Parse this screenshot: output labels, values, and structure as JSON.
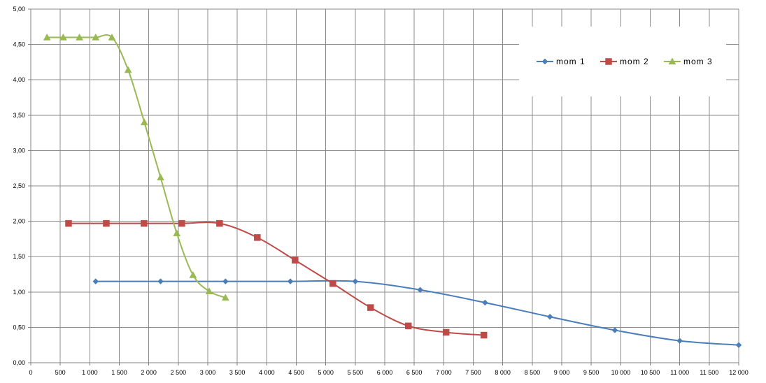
{
  "chart_data": {
    "type": "line",
    "smooth": true,
    "title": "",
    "xlabel": "",
    "ylabel": "",
    "xlim": [
      0,
      12000
    ],
    "ylim": [
      0,
      5
    ],
    "x_ticks": [
      0,
      500,
      1000,
      1500,
      2000,
      2500,
      3000,
      3500,
      4000,
      4500,
      5000,
      5500,
      6000,
      6500,
      7000,
      7500,
      8000,
      8500,
      9000,
      9500,
      10000,
      10500,
      11000,
      11500,
      12000
    ],
    "x_tick_labels": [
      "0",
      "500",
      "1 000",
      "1 500",
      "2 000",
      "2 500",
      "3 000",
      "3 500",
      "4 000",
      "4 500",
      "5 000",
      "5 500",
      "6 000",
      "6 500",
      "7 000",
      "7 500",
      "8 000",
      "8 500",
      "9 000",
      "9 500",
      "10 000",
      "10 500",
      "11 000",
      "11 500",
      "12 000"
    ],
    "y_ticks": [
      0,
      0.5,
      1,
      1.5,
      2,
      2.5,
      3,
      3.5,
      4,
      4.5,
      5
    ],
    "y_tick_labels": [
      "0,00",
      "0,50",
      "1,00",
      "1,50",
      "2,00",
      "2,50",
      "3,00",
      "3,50",
      "4,00",
      "4,50",
      "5,00"
    ],
    "grid": true,
    "legend_position": "top-right",
    "series": [
      {
        "name": "mom 1",
        "color": "#4a7ebb",
        "marker": "diamond",
        "points": [
          [
            1100,
            1.15
          ],
          [
            2200,
            1.15
          ],
          [
            3300,
            1.15
          ],
          [
            4400,
            1.15
          ],
          [
            5500,
            1.15
          ],
          [
            6600,
            1.03
          ],
          [
            7700,
            0.85
          ],
          [
            8800,
            0.65
          ],
          [
            9900,
            0.46
          ],
          [
            11000,
            0.31
          ],
          [
            12000,
            0.25
          ]
        ]
      },
      {
        "name": "mom 2",
        "color": "#be4b48",
        "marker": "square",
        "points": [
          [
            640,
            1.97
          ],
          [
            1280,
            1.97
          ],
          [
            1920,
            1.97
          ],
          [
            2560,
            1.97
          ],
          [
            3200,
            1.97
          ],
          [
            3840,
            1.77
          ],
          [
            4480,
            1.45
          ],
          [
            5120,
            1.12
          ],
          [
            5760,
            0.78
          ],
          [
            6400,
            0.52
          ],
          [
            7040,
            0.43
          ],
          [
            7680,
            0.39
          ]
        ]
      },
      {
        "name": "mom 3",
        "color": "#98b954",
        "marker": "triangle",
        "points": [
          [
            275,
            4.6
          ],
          [
            550,
            4.6
          ],
          [
            825,
            4.6
          ],
          [
            1100,
            4.6
          ],
          [
            1375,
            4.6
          ],
          [
            1650,
            4.14
          ],
          [
            1925,
            3.4
          ],
          [
            2200,
            2.62
          ],
          [
            2475,
            1.83
          ],
          [
            2750,
            1.24
          ],
          [
            3025,
            1.01
          ],
          [
            3300,
            0.92
          ]
        ]
      }
    ]
  }
}
